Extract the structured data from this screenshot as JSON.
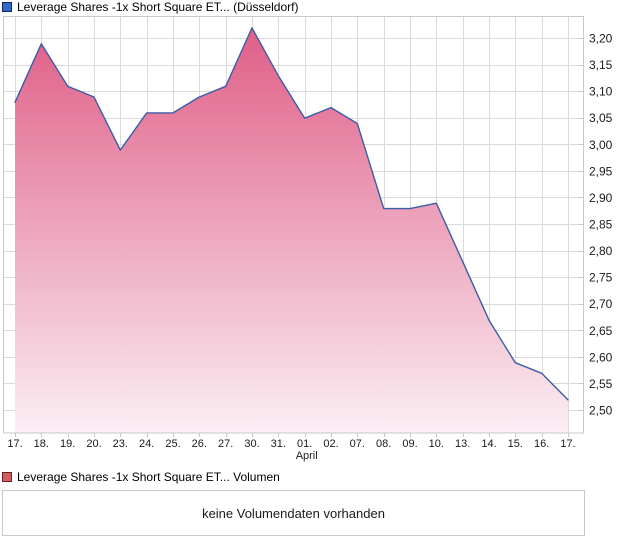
{
  "header": {
    "title": "Leverage Shares -1x Short Square ET... (Düsseldorf)"
  },
  "volume_legend": {
    "label": "Leverage Shares -1x Short Square ET... Volumen"
  },
  "volume_box": {
    "message": "keine Volumendaten vorhanden"
  },
  "chart_data": {
    "type": "area",
    "title": "Leverage Shares -1x Short Square ET... (Düsseldorf)",
    "series": [
      {
        "name": "Leverage Shares -1x Short Square ET... (Düsseldorf)",
        "values": [
          3.08,
          3.19,
          3.11,
          3.09,
          2.99,
          3.06,
          3.06,
          3.09,
          3.11,
          3.22,
          3.13,
          3.05,
          3.07,
          3.04,
          2.88,
          2.88,
          2.89,
          2.78,
          2.67,
          2.59,
          2.57,
          2.52
        ]
      }
    ],
    "x_axis": {
      "labels": [
        "17.",
        "18.",
        "19.",
        "20.",
        "23.",
        "24.",
        "25.",
        "26.",
        "27.",
        "30.",
        "31.",
        "01.",
        "02.",
        "07.",
        "08.",
        "09.",
        "10.",
        "13.",
        "14.",
        "15.",
        "16.",
        "17."
      ],
      "month_label": "April",
      "month_label_index": 11
    },
    "y_axis": {
      "min": 2.5,
      "max": 3.2,
      "step": 0.05,
      "tick_labels_top_down": [
        "3,20",
        "3,15",
        "3,10",
        "3,05",
        "3,00",
        "2,95",
        "2,90",
        "2,85",
        "2,80",
        "2,75",
        "2,70",
        "2,65",
        "2,60",
        "2,55",
        "2,50"
      ]
    },
    "grid": true,
    "legend_position": "top-left",
    "xlabel": "",
    "ylabel": "",
    "colors": {
      "line": "#3a5ea6",
      "fill_top": "#df5e87",
      "fill_bottom": "#fbeef4",
      "grid": "#dadada",
      "border": "#c9c9c9",
      "tick_text": "#1a1a1a",
      "title_icon_fill": "#2e6bc4",
      "title_icon_border": "#17255e",
      "volume_icon_fill": "#d05f63",
      "volume_icon_border": "#6b2026"
    }
  }
}
